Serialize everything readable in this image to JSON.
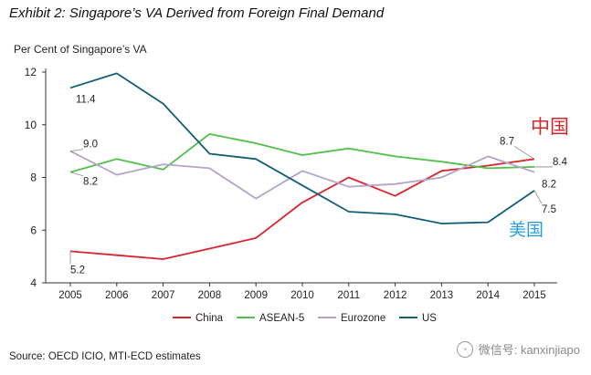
{
  "title": "Exhibit 2: Singapore’s VA Derived from Foreign Final Demand",
  "source": "Source: OECD ICIO, MTI-ECD estimates",
  "watermark": "微信号: kanxinjiapo",
  "chart_data": {
    "type": "line",
    "ylabel": "Per Cent of Singapore’s  VA",
    "xlabel": "",
    "ylim": [
      4,
      12
    ],
    "yticks": [
      4,
      6,
      8,
      10,
      12
    ],
    "categories": [
      "2005",
      "2006",
      "2007",
      "2008",
      "2009",
      "2010",
      "2011",
      "2012",
      "2013",
      "2014",
      "2015"
    ],
    "grid": false,
    "legend_position": "bottom",
    "series": [
      {
        "name": "China",
        "color": "#d7262b",
        "values": [
          5.2,
          5.05,
          4.9,
          5.3,
          5.7,
          7.05,
          8.0,
          7.3,
          8.25,
          8.45,
          8.7
        ]
      },
      {
        "name": "ASEAN-5",
        "color": "#4fc049",
        "values": [
          8.2,
          8.7,
          8.3,
          9.65,
          9.3,
          8.85,
          9.1,
          8.8,
          8.6,
          8.35,
          8.4
        ]
      },
      {
        "name": "Eurozone",
        "color": "#b3a3c9",
        "values": [
          9.0,
          8.1,
          8.5,
          8.35,
          7.2,
          8.25,
          7.65,
          7.75,
          8.0,
          8.8,
          8.2
        ]
      },
      {
        "name": "US",
        "color": "#135d79",
        "values": [
          11.4,
          11.95,
          10.8,
          8.9,
          8.7,
          7.7,
          6.7,
          6.6,
          6.25,
          6.3,
          7.5
        ]
      }
    ],
    "data_labels": [
      {
        "text": "11.4",
        "series": "US",
        "index": 0,
        "color": "#222222"
      },
      {
        "text": "9.0",
        "series": "Eurozone",
        "index": 0,
        "color": "#222222"
      },
      {
        "text": "8.2",
        "series": "ASEAN-5",
        "index": 0,
        "color": "#222222"
      },
      {
        "text": "5.2",
        "series": "China",
        "index": 0,
        "color": "#222222"
      },
      {
        "text": "8.7",
        "series": "China",
        "index": 10,
        "color": "#222222"
      },
      {
        "text": "8.4",
        "series": "ASEAN-5",
        "index": 10,
        "color": "#222222"
      },
      {
        "text": "8.2",
        "series": "Eurozone",
        "index": 10,
        "color": "#222222"
      },
      {
        "text": "7.5",
        "series": "US",
        "index": 10,
        "color": "#222222"
      }
    ],
    "annotations": [
      {
        "text": "中国",
        "color": "#d7262b"
      },
      {
        "text": "美国",
        "color": "#2a9fd8"
      }
    ]
  }
}
